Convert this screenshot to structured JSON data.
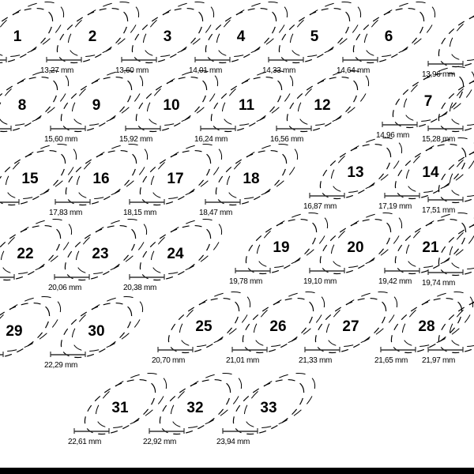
{
  "rings": [
    {
      "number": "1",
      "size": "mm"
    },
    {
      "number": "2",
      "size": "13,27 mm"
    },
    {
      "number": "3",
      "size": "13,60 mm"
    },
    {
      "number": "4",
      "size": "14,01 mm"
    },
    {
      "number": "5",
      "size": "14,33 mm"
    },
    {
      "number": "6",
      "size": "14,64 mm"
    },
    {
      "number": "",
      "size": "13,96 mm"
    },
    {
      "number": "8",
      "size": "m"
    },
    {
      "number": "9",
      "size": "15,60 mm"
    },
    {
      "number": "10",
      "size": "15,92 mm"
    },
    {
      "number": "11",
      "size": "16,24 mm"
    },
    {
      "number": "12",
      "size": "16,56 mm"
    },
    {
      "number": "7",
      "size": "14,96 mm"
    },
    {
      "number": "",
      "size": "15,28 mm"
    },
    {
      "number": "15",
      "size": "m"
    },
    {
      "number": "16",
      "size": "17,83 mm"
    },
    {
      "number": "17",
      "size": "18,15 mm"
    },
    {
      "number": "18",
      "size": "18,47 mm"
    },
    {
      "number": "13",
      "size": "16,87 mm"
    },
    {
      "number": "14",
      "size": "17,19 mm"
    },
    {
      "number": "",
      "size": "17,51 mm"
    },
    {
      "number": "22",
      "size": "m"
    },
    {
      "number": "23",
      "size": "20,06 mm"
    },
    {
      "number": "24",
      "size": "20,38 mm"
    },
    {
      "number": "19",
      "size": "19,78 mm"
    },
    {
      "number": "20",
      "size": "19,10 mm"
    },
    {
      "number": "21",
      "size": "19,42 mm"
    },
    {
      "number": "",
      "size": "19,74 mm"
    },
    {
      "number": "29",
      "size": ""
    },
    {
      "number": "30",
      "size": "22,29 mm"
    },
    {
      "number": "25",
      "size": "20,70 mm"
    },
    {
      "number": "26",
      "size": "21,01 mm"
    },
    {
      "number": "27",
      "size": "21,33 mm"
    },
    {
      "number": "28",
      "size": "21,65 mm"
    },
    {
      "number": "",
      "size": "21,97 mm"
    },
    {
      "number": "31",
      "size": "22,61 mm"
    },
    {
      "number": "32",
      "size": "22,92 mm"
    },
    {
      "number": "33",
      "size": "23,94 mm"
    }
  ]
}
